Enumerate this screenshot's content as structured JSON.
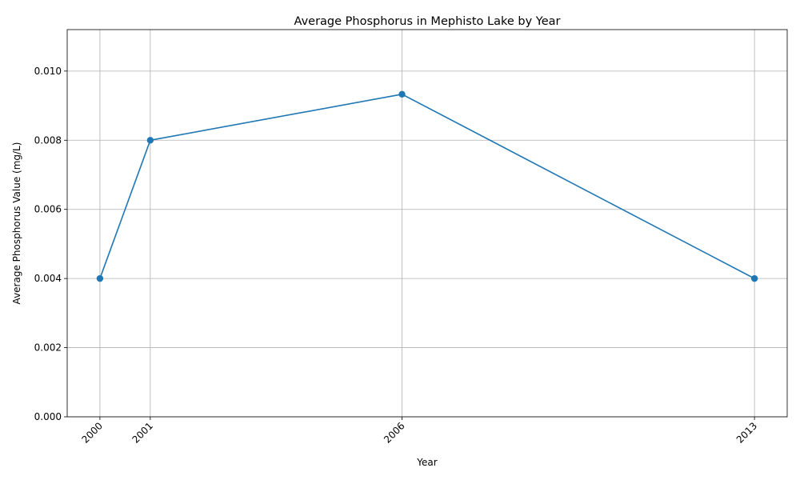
{
  "chart_data": {
    "type": "line",
    "title": "Average Phosphorus in Mephisto Lake by Year",
    "xlabel": "Year",
    "ylabel": "Average Phosphorus Value (mg/L)",
    "x": [
      2000,
      2001,
      2006,
      2013
    ],
    "x_tick_labels": [
      "2000",
      "2001",
      "2006",
      "2013"
    ],
    "series": [
      {
        "values": [
          0.004,
          0.008,
          0.00933,
          0.004
        ],
        "color": "#1f77b4",
        "marker": "circle"
      }
    ],
    "xlim": [
      1999.35,
      2013.65
    ],
    "ylim": [
      0,
      0.0112
    ],
    "y_ticks": [
      0,
      0.002,
      0.004,
      0.006,
      0.008,
      0.01
    ],
    "y_tick_labels": [
      "0.000",
      "0.002",
      "0.004",
      "0.006",
      "0.008",
      "0.010"
    ],
    "grid": true,
    "legend": "none"
  }
}
